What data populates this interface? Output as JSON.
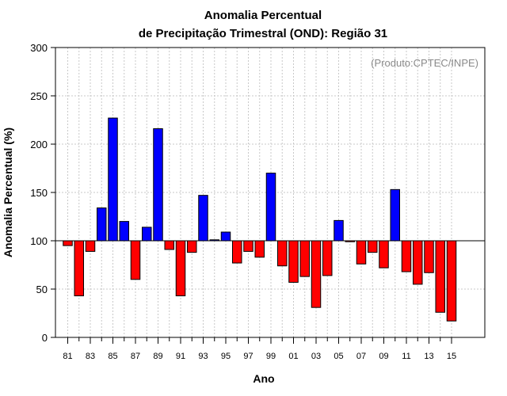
{
  "chart_data": {
    "type": "bar",
    "title_line1": "Anomalia Percentual",
    "title_line2": "de Precipitação Trimestral (OND): Região 31",
    "xlabel": "Ano",
    "ylabel": "Anomalia Percentual (%)",
    "credit": "(Produto:CPTEC/INPE)",
    "ylim": [
      0,
      300
    ],
    "yticks": [
      "0",
      "50",
      "100",
      "150",
      "200",
      "250",
      "300"
    ],
    "baseline": 100,
    "positive_color": "#0000ff",
    "negative_color": "#ff0000",
    "categories": [
      "81",
      "82",
      "83",
      "84",
      "85",
      "86",
      "87",
      "88",
      "89",
      "90",
      "91",
      "92",
      "93",
      "94",
      "95",
      "96",
      "97",
      "98",
      "99",
      "00",
      "01",
      "02",
      "03",
      "04",
      "05",
      "06",
      "07",
      "08",
      "09",
      "10",
      "11",
      "12",
      "13",
      "14",
      "15"
    ],
    "xtick_labels": [
      "81",
      "83",
      "85",
      "87",
      "89",
      "91",
      "93",
      "95",
      "97",
      "99",
      "01",
      "03",
      "05",
      "07",
      "09",
      "11",
      "13",
      "15"
    ],
    "values": [
      95,
      43,
      89,
      134,
      227,
      120,
      60,
      114,
      216,
      91,
      43,
      88,
      147,
      101,
      109,
      77,
      89,
      83,
      170,
      74,
      57,
      63,
      31,
      64,
      121,
      99,
      76,
      88,
      72,
      153,
      68,
      55,
      67,
      26,
      17
    ]
  }
}
